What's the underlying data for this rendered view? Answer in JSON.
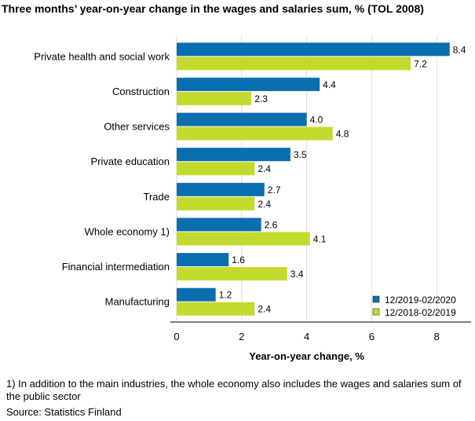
{
  "chart_data": {
    "type": "bar",
    "orientation": "horizontal",
    "title": "Three months’ year-on-year change in the wages and salaries sum, % (TOL 2008)",
    "xlabel": "Year-on-year change, %",
    "ylabel": "",
    "xlim": [
      0,
      8.4
    ],
    "xticks": [
      0,
      2,
      4,
      6,
      8
    ],
    "grid": true,
    "legend_position": "bottom-right",
    "categories": [
      "Private health and social work",
      "Construction",
      "Other services",
      "Private education",
      "Trade",
      "Whole economy 1)",
      "Financial intermediation",
      "Manufacturing"
    ],
    "series": [
      {
        "name": "12/2019-02/2020",
        "color": "#0b6eae",
        "values": [
          8.4,
          4.4,
          4.0,
          3.5,
          2.7,
          2.6,
          1.6,
          1.2
        ]
      },
      {
        "name": "12/2018-02/2019",
        "color": "#c4d92e",
        "values": [
          7.2,
          2.3,
          4.8,
          2.4,
          2.4,
          4.1,
          3.4,
          2.4
        ]
      }
    ]
  },
  "footnote": "1) In addition to the main industries, the whole economy also includes the wages and salaries sum of the public sector",
  "source": "Source: Statistics Finland"
}
